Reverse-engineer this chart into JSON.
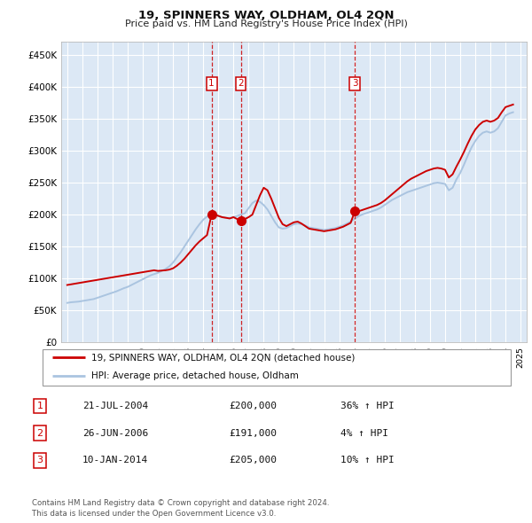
{
  "title": "19, SPINNERS WAY, OLDHAM, OL4 2QN",
  "subtitle": "Price paid vs. HM Land Registry's House Price Index (HPI)",
  "ylabel_ticks": [
    "£0",
    "£50K",
    "£100K",
    "£150K",
    "£200K",
    "£250K",
    "£300K",
    "£350K",
    "£400K",
    "£450K"
  ],
  "ytick_values": [
    0,
    50000,
    100000,
    150000,
    200000,
    250000,
    300000,
    350000,
    400000,
    450000
  ],
  "ylim": [
    0,
    470000
  ],
  "xlim_start": 1994.6,
  "xlim_end": 2025.4,
  "hpi_color": "#aac4e0",
  "sold_color": "#cc0000",
  "background_color": "#dce8f5",
  "grid_color": "#ffffff",
  "transactions": [
    {
      "num": 1,
      "date_x": 2004.55,
      "price": 200000,
      "label": "1"
    },
    {
      "num": 2,
      "date_x": 2006.48,
      "price": 191000,
      "label": "2"
    },
    {
      "num": 3,
      "date_x": 2014.03,
      "price": 205000,
      "label": "3"
    }
  ],
  "legend_entries": [
    {
      "label": "19, SPINNERS WAY, OLDHAM, OL4 2QN (detached house)",
      "color": "#cc0000"
    },
    {
      "label": "HPI: Average price, detached house, Oldham",
      "color": "#aac4e0"
    }
  ],
  "table_rows": [
    {
      "num": "1",
      "date": "21-JUL-2004",
      "price": "£200,000",
      "hpi": "36% ↑ HPI"
    },
    {
      "num": "2",
      "date": "26-JUN-2006",
      "price": "£191,000",
      "hpi": "4% ↑ HPI"
    },
    {
      "num": "3",
      "date": "10-JAN-2014",
      "price": "£205,000",
      "hpi": "10% ↑ HPI"
    }
  ],
  "footnote": "Contains HM Land Registry data © Crown copyright and database right 2024.\nThis data is licensed under the Open Government Licence v3.0.",
  "hpi_data": {
    "years": [
      1995.0,
      1995.25,
      1995.5,
      1995.75,
      1996.0,
      1996.25,
      1996.5,
      1996.75,
      1997.0,
      1997.25,
      1997.5,
      1997.75,
      1998.0,
      1998.25,
      1998.5,
      1998.75,
      1999.0,
      1999.25,
      1999.5,
      1999.75,
      2000.0,
      2000.25,
      2000.5,
      2000.75,
      2001.0,
      2001.25,
      2001.5,
      2001.75,
      2002.0,
      2002.25,
      2002.5,
      2002.75,
      2003.0,
      2003.25,
      2003.5,
      2003.75,
      2004.0,
      2004.25,
      2004.5,
      2004.75,
      2005.0,
      2005.25,
      2005.5,
      2005.75,
      2006.0,
      2006.25,
      2006.5,
      2006.75,
      2007.0,
      2007.25,
      2007.5,
      2007.75,
      2008.0,
      2008.25,
      2008.5,
      2008.75,
      2009.0,
      2009.25,
      2009.5,
      2009.75,
      2010.0,
      2010.25,
      2010.5,
      2010.75,
      2011.0,
      2011.25,
      2011.5,
      2011.75,
      2012.0,
      2012.25,
      2012.5,
      2012.75,
      2013.0,
      2013.25,
      2013.5,
      2013.75,
      2014.0,
      2014.25,
      2014.5,
      2014.75,
      2015.0,
      2015.25,
      2015.5,
      2015.75,
      2016.0,
      2016.25,
      2016.5,
      2016.75,
      2017.0,
      2017.25,
      2017.5,
      2017.75,
      2018.0,
      2018.25,
      2018.5,
      2018.75,
      2019.0,
      2019.25,
      2019.5,
      2019.75,
      2020.0,
      2020.25,
      2020.5,
      2020.75,
      2021.0,
      2021.25,
      2021.5,
      2021.75,
      2022.0,
      2022.25,
      2022.5,
      2022.75,
      2023.0,
      2023.25,
      2023.5,
      2023.75,
      2024.0,
      2024.25,
      2024.5
    ],
    "values": [
      62000,
      63000,
      63500,
      64000,
      65000,
      66000,
      67000,
      68000,
      70000,
      72000,
      74000,
      76000,
      78000,
      80000,
      82500,
      85000,
      87000,
      90000,
      93000,
      96000,
      99000,
      102000,
      105000,
      107000,
      109000,
      112000,
      115000,
      119000,
      125000,
      133000,
      141000,
      150000,
      159000,
      168000,
      177000,
      185000,
      192000,
      197000,
      200000,
      200000,
      198000,
      196000,
      195000,
      194000,
      196000,
      198000,
      200000,
      202000,
      210000,
      218000,
      222000,
      220000,
      215000,
      208000,
      198000,
      188000,
      180000,
      178000,
      179000,
      182000,
      185000,
      186000,
      185000,
      183000,
      180000,
      179000,
      178000,
      177000,
      176000,
      177000,
      178000,
      179000,
      181000,
      183000,
      186000,
      189000,
      193000,
      197000,
      200000,
      202000,
      204000,
      206000,
      208000,
      211000,
      215000,
      219000,
      223000,
      226000,
      229000,
      232000,
      235000,
      237000,
      239000,
      241000,
      243000,
      245000,
      247000,
      249000,
      250000,
      249000,
      248000,
      238000,
      242000,
      255000,
      265000,
      278000,
      292000,
      305000,
      315000,
      323000,
      328000,
      330000,
      328000,
      330000,
      335000,
      345000,
      355000,
      358000,
      360000
    ]
  },
  "sold_data": {
    "years": [
      1995.0,
      1995.25,
      1995.5,
      1995.75,
      1996.0,
      1996.25,
      1996.5,
      1996.75,
      1997.0,
      1997.25,
      1997.5,
      1997.75,
      1998.0,
      1998.25,
      1998.5,
      1998.75,
      1999.0,
      1999.25,
      1999.5,
      1999.75,
      2000.0,
      2000.25,
      2000.5,
      2000.75,
      2001.0,
      2001.25,
      2001.5,
      2001.75,
      2002.0,
      2002.25,
      2002.5,
      2002.75,
      2003.0,
      2003.25,
      2003.5,
      2003.75,
      2004.0,
      2004.25,
      2004.55,
      2004.75,
      2005.0,
      2005.25,
      2005.5,
      2005.75,
      2006.0,
      2006.25,
      2006.48,
      2006.75,
      2007.0,
      2007.25,
      2007.5,
      2007.75,
      2008.0,
      2008.25,
      2008.5,
      2008.75,
      2009.0,
      2009.25,
      2009.5,
      2009.75,
      2010.0,
      2010.25,
      2010.5,
      2010.75,
      2011.0,
      2011.25,
      2011.5,
      2011.75,
      2012.0,
      2012.25,
      2012.5,
      2012.75,
      2013.0,
      2013.25,
      2013.5,
      2013.75,
      2014.03,
      2014.25,
      2014.5,
      2014.75,
      2015.0,
      2015.25,
      2015.5,
      2015.75,
      2016.0,
      2016.25,
      2016.5,
      2016.75,
      2017.0,
      2017.25,
      2017.5,
      2017.75,
      2018.0,
      2018.25,
      2018.5,
      2018.75,
      2019.0,
      2019.25,
      2019.5,
      2019.75,
      2020.0,
      2020.25,
      2020.5,
      2020.75,
      2021.0,
      2021.25,
      2021.5,
      2021.75,
      2022.0,
      2022.25,
      2022.5,
      2022.75,
      2023.0,
      2023.25,
      2023.5,
      2023.75,
      2024.0,
      2024.25,
      2024.5
    ],
    "values": [
      90000,
      91000,
      92000,
      93000,
      94000,
      95000,
      96000,
      97000,
      98000,
      99000,
      100000,
      101000,
      102000,
      103000,
      104000,
      105000,
      106000,
      107000,
      108000,
      109000,
      110000,
      111000,
      112000,
      113000,
      112000,
      112500,
      113000,
      114000,
      116000,
      120000,
      125000,
      131000,
      138000,
      145000,
      152000,
      158000,
      163000,
      168000,
      200000,
      200000,
      198000,
      196000,
      195000,
      194000,
      196000,
      193000,
      191000,
      193000,
      196000,
      200000,
      215000,
      230000,
      242000,
      238000,
      225000,
      210000,
      195000,
      185000,
      182000,
      185000,
      188000,
      189000,
      186000,
      182000,
      178000,
      177000,
      176000,
      175000,
      174000,
      175000,
      176000,
      177000,
      179000,
      181000,
      184000,
      187000,
      205000,
      205000,
      207000,
      209000,
      211000,
      213000,
      215000,
      218000,
      222000,
      227000,
      232000,
      237000,
      242000,
      247000,
      252000,
      256000,
      259000,
      262000,
      265000,
      268000,
      270000,
      272000,
      273000,
      272000,
      270000,
      258000,
      263000,
      275000,
      286000,
      298000,
      311000,
      323000,
      333000,
      340000,
      345000,
      347000,
      345000,
      347000,
      351000,
      360000,
      368000,
      370000,
      372000
    ]
  }
}
